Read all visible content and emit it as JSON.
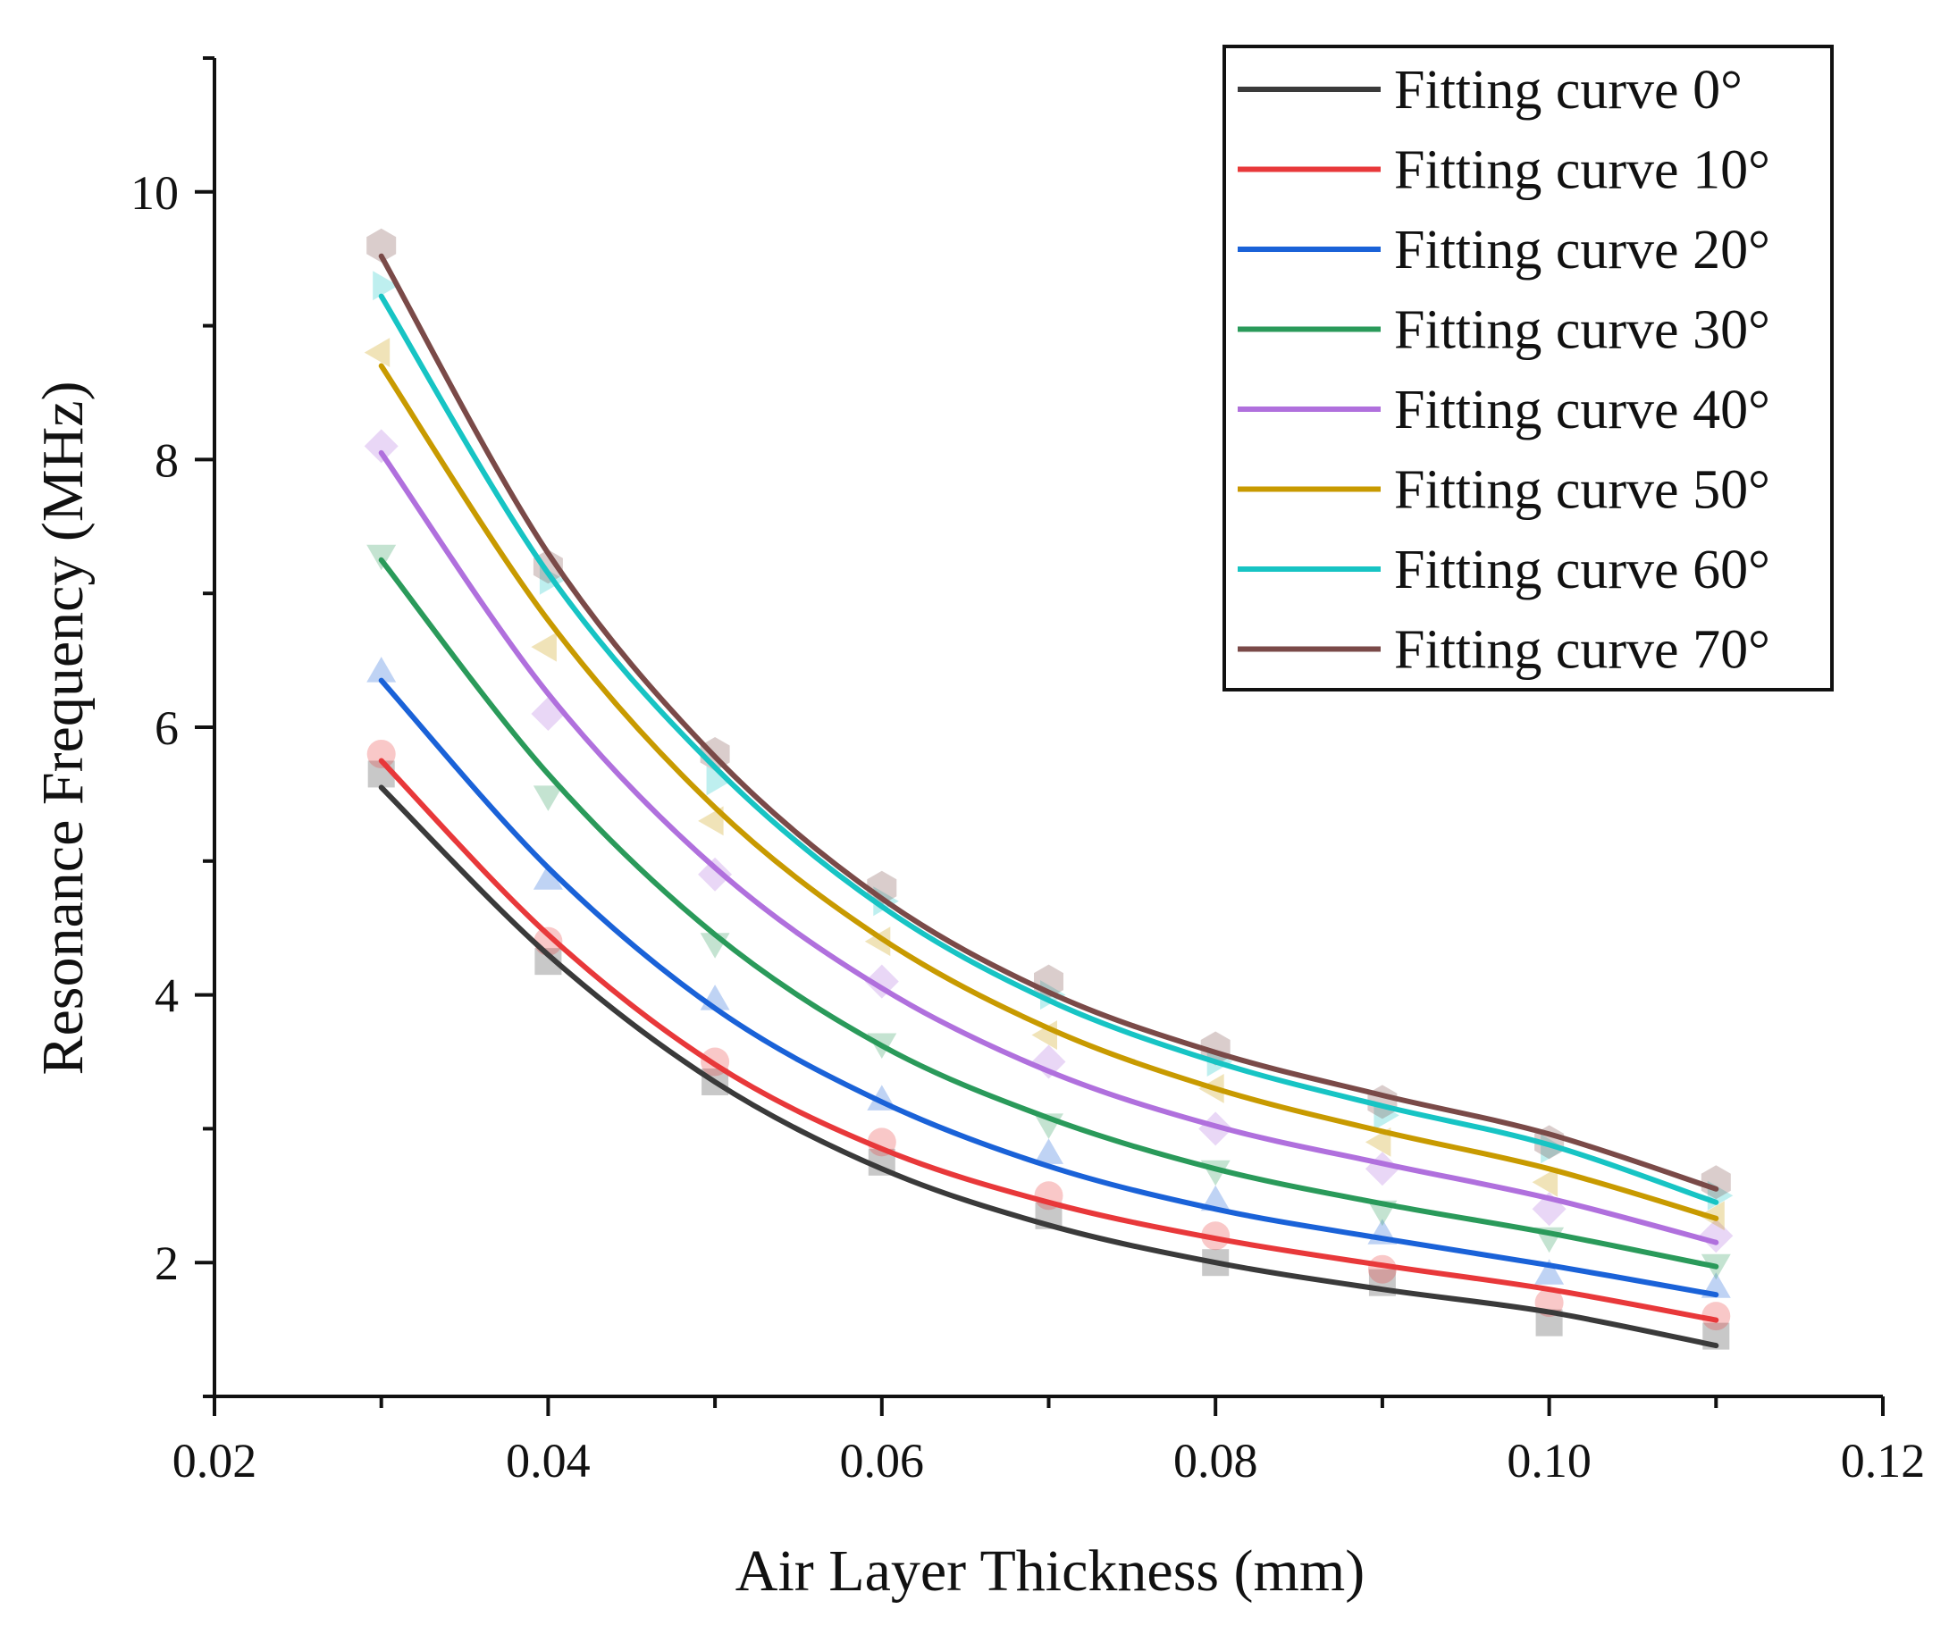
{
  "chart_data": {
    "type": "scatter",
    "title": "",
    "xlabel": "Air Layer Thickness (mm)",
    "ylabel": "Resonance Frequency (MHz)",
    "xlim": [
      0.02,
      0.12
    ],
    "ylim": [
      1.0,
      11.0
    ],
    "xticks": [
      {
        "value": 0.02,
        "label": "0.02"
      },
      {
        "value": 0.04,
        "label": "0.04"
      },
      {
        "value": 0.06,
        "label": "0.06"
      },
      {
        "value": 0.08,
        "label": "0.08"
      },
      {
        "value": 0.1,
        "label": "0.10"
      },
      {
        "value": 0.12,
        "label": "0.12"
      }
    ],
    "yticks": [
      {
        "value": 2,
        "label": "2"
      },
      {
        "value": 4,
        "label": "4"
      },
      {
        "value": 6,
        "label": "6"
      },
      {
        "value": 8,
        "label": "8"
      },
      {
        "value": 10,
        "label": "10"
      }
    ],
    "legend_position": "top-right",
    "x": [
      0.03,
      0.04,
      0.05,
      0.06,
      0.07,
      0.08,
      0.09,
      0.1,
      0.11
    ],
    "series": [
      {
        "name": "Fitting curve 0°",
        "color": "#3a3a3a",
        "marker": "square",
        "points": [
          5.65,
          4.25,
          3.35,
          2.75,
          2.35,
          2.0,
          1.85,
          1.55,
          1.45
        ],
        "fit": [
          5.55,
          4.3,
          3.35,
          2.7,
          2.28,
          2.0,
          1.8,
          1.63,
          1.38
        ]
      },
      {
        "name": "Fitting curve 10°",
        "color": "#e8383a",
        "marker": "circle",
        "points": [
          5.8,
          4.4,
          3.5,
          2.9,
          2.5,
          2.2,
          1.95,
          1.7,
          1.6
        ],
        "fit": [
          5.75,
          4.45,
          3.48,
          2.85,
          2.45,
          2.18,
          1.98,
          1.8,
          1.57
        ]
      },
      {
        "name": "Fitting curve 20°",
        "color": "#1a62d8",
        "marker": "triangle-up",
        "points": [
          6.4,
          4.85,
          3.95,
          3.2,
          2.8,
          2.45,
          2.2,
          1.9,
          1.8
        ],
        "fit": [
          6.35,
          4.95,
          3.9,
          3.2,
          2.72,
          2.4,
          2.18,
          1.98,
          1.76
        ]
      },
      {
        "name": "Fitting curve 30°",
        "color": "#2a9a5a",
        "marker": "triangle-down",
        "points": [
          7.3,
          5.5,
          4.4,
          3.65,
          3.05,
          2.7,
          2.4,
          2.2,
          2.0
        ],
        "fit": [
          7.25,
          5.65,
          4.45,
          3.62,
          3.08,
          2.7,
          2.44,
          2.22,
          1.97
        ]
      },
      {
        "name": "Fitting curve 40°",
        "color": "#b070dd",
        "marker": "diamond",
        "points": [
          8.1,
          6.1,
          4.9,
          4.1,
          3.5,
          3.0,
          2.7,
          2.4,
          2.2
        ],
        "fit": [
          8.05,
          6.25,
          4.95,
          4.05,
          3.43,
          3.02,
          2.74,
          2.48,
          2.15
        ]
      },
      {
        "name": "Fitting curve 50°",
        "color": "#c89a00",
        "marker": "triangle-left",
        "points": [
          8.8,
          6.6,
          5.3,
          4.4,
          3.7,
          3.3,
          2.9,
          2.6,
          2.35
        ],
        "fit": [
          8.7,
          6.8,
          5.4,
          4.42,
          3.75,
          3.3,
          2.98,
          2.7,
          2.33
        ]
      },
      {
        "name": "Fitting curve 60°",
        "color": "#17c4c4",
        "marker": "triangle-right",
        "points": [
          9.3,
          7.1,
          5.6,
          4.7,
          4.0,
          3.5,
          3.1,
          2.85,
          2.5
        ],
        "fit": [
          9.22,
          7.15,
          5.7,
          4.66,
          3.96,
          3.5,
          3.17,
          2.88,
          2.45
        ]
      },
      {
        "name": "Fitting curve 70°",
        "color": "#7a4a48",
        "marker": "hexagon",
        "points": [
          9.6,
          7.2,
          5.8,
          4.8,
          4.1,
          3.6,
          3.2,
          2.9,
          2.6
        ],
        "fit": [
          9.52,
          7.3,
          5.78,
          4.72,
          4.02,
          3.57,
          3.25,
          2.96,
          2.55
        ]
      }
    ]
  }
}
